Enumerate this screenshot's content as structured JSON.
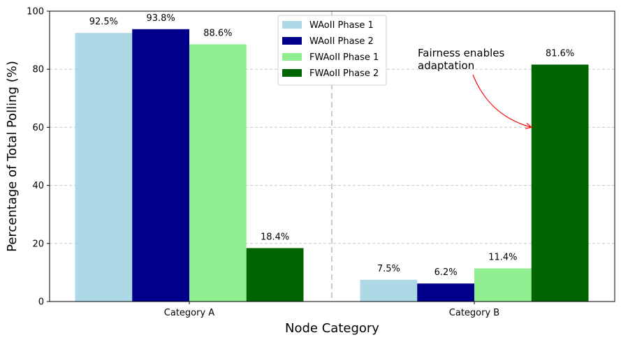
{
  "chart_data": {
    "type": "bar",
    "title": "",
    "xlabel": "Node Category",
    "ylabel": "Percentage of Total Polling (%)",
    "ylim": [
      0,
      100
    ],
    "yticks": [
      "0",
      "20",
      "40",
      "60",
      "80",
      "100"
    ],
    "grid": "y-dashed",
    "categories": [
      "Category A",
      "Category B"
    ],
    "series": [
      {
        "name": "WAoII Phase 1",
        "color": "#add8e6",
        "values": [
          92.5,
          7.5
        ],
        "labels": [
          "92.5%",
          "7.5%"
        ]
      },
      {
        "name": "WAoII Phase 2",
        "color": "#00008b",
        "values": [
          93.8,
          6.2
        ],
        "labels": [
          "93.8%",
          "6.2%"
        ]
      },
      {
        "name": "FWAoII Phase 1",
        "color": "#90ee90",
        "values": [
          88.6,
          11.4
        ],
        "labels": [
          "88.6%",
          "11.4%"
        ]
      },
      {
        "name": "FWAoII Phase 2",
        "color": "#006400",
        "values": [
          18.4,
          81.6
        ],
        "labels": [
          "18.4%",
          "81.6%"
        ]
      }
    ],
    "legend_position": "top-center",
    "annotation": {
      "lines": [
        "Fairness enables",
        "adaptation"
      ],
      "target_category": "Category B",
      "target_series": "FWAoII Phase 2",
      "target_value": 60,
      "arrow_color": "#ff0000"
    }
  }
}
